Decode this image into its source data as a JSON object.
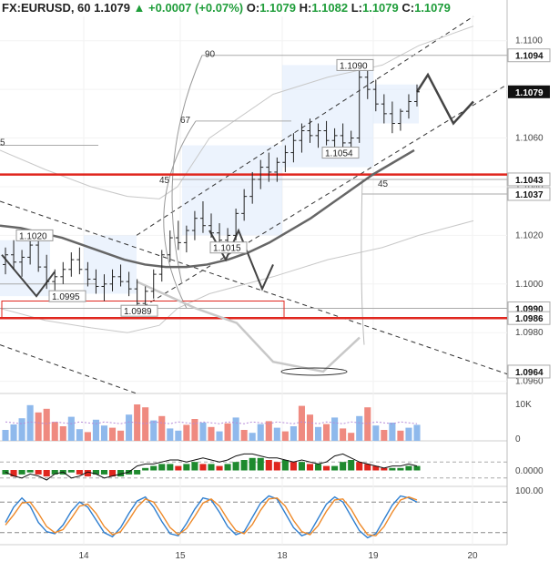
{
  "header": {
    "symbol": "FX:EURUSD, 60",
    "last": "1.1079",
    "change": "+0.0007 (+0.07%)",
    "o_label": "O:",
    "o": "1.1079",
    "h_label": "H:",
    "h": "1.1082",
    "l_label": "L:",
    "l": "1.1079",
    "c_label": "C:",
    "c": "1.1079"
  },
  "chart_data": [
    {
      "type": "line",
      "panel": "price",
      "y_axis_ticks": [
        "1.1100",
        "1.1080",
        "1.1060",
        "1.1040",
        "1.1020",
        "1.1000",
        "1.0980",
        "1.0960"
      ],
      "ylim": [
        1.0955,
        1.111
      ],
      "x_ticks": [
        "14",
        "15",
        "18",
        "19",
        "20"
      ],
      "price_labels": [
        {
          "text": "1.1094",
          "value": 1.1094,
          "style": "white"
        },
        {
          "text": "1.1079",
          "value": 1.1079,
          "style": "black"
        },
        {
          "text": "1.1043",
          "value": 1.1043,
          "style": "white"
        },
        {
          "text": "1.1037",
          "value": 1.1037,
          "style": "white"
        },
        {
          "text": "1.0990",
          "value": 1.099,
          "style": "white"
        },
        {
          "text": "1.0986",
          "value": 1.0986,
          "style": "white"
        },
        {
          "text": "1.0964",
          "value": 1.0964,
          "style": "white"
        }
      ],
      "annotations": [
        {
          "text": "1.1090",
          "value": 1.109
        },
        {
          "text": "1.1054",
          "value": 1.1054
        },
        {
          "text": "1.1020",
          "value": 1.102
        },
        {
          "text": "1.1015",
          "value": 1.1015
        },
        {
          "text": "1.0995",
          "value": 1.0995
        },
        {
          "text": "1.0989",
          "value": 1.0989
        },
        {
          "text": "90"
        },
        {
          "text": "67"
        },
        {
          "text": "45"
        },
        {
          "text": "45"
        },
        {
          "text": "5"
        }
      ],
      "horizontal_levels": [
        1.1045,
        1.0986
      ],
      "candles": [
        [
          1.1008,
          1.1015,
          1.1004,
          1.1012
        ],
        [
          1.1012,
          1.1018,
          1.1006,
          1.1009
        ],
        [
          1.1009,
          1.1014,
          1.1003,
          1.1011
        ],
        [
          1.1011,
          1.102,
          1.1008,
          1.1016
        ],
        [
          1.1016,
          1.1019,
          1.1005,
          1.1007
        ],
        [
          1.1007,
          1.1012,
          1.0998,
          1.1001
        ],
        [
          1.1001,
          1.1006,
          1.0995,
          1.1003
        ],
        [
          1.1003,
          1.1009,
          1.1,
          1.1006
        ],
        [
          1.1006,
          1.1013,
          1.1003,
          1.101
        ],
        [
          1.101,
          1.1015,
          1.1004,
          1.1006
        ],
        [
          1.1006,
          1.1009,
          1.0999,
          1.1002
        ],
        [
          1.1002,
          1.1006,
          1.0996,
          1.0999
        ],
        [
          1.0999,
          1.1004,
          1.0993,
          1.1
        ],
        [
          1.1,
          1.1006,
          1.0997,
          1.1003
        ],
        [
          1.1003,
          1.1008,
          1.0999,
          1.1001
        ],
        [
          1.1001,
          1.1005,
          1.0995,
          1.0998
        ],
        [
          1.0998,
          1.1002,
          1.0989,
          1.0992
        ],
        [
          1.0992,
          1.0999,
          1.099,
          1.0997
        ],
        [
          1.0997,
          1.1006,
          1.0994,
          1.1004
        ],
        [
          1.1004,
          1.1014,
          1.1001,
          1.1012
        ],
        [
          1.1012,
          1.1022,
          1.1009,
          1.1019
        ],
        [
          1.1019,
          1.1026,
          1.1014,
          1.1017
        ],
        [
          1.1017,
          1.1024,
          1.1013,
          1.1022
        ],
        [
          1.1022,
          1.103,
          1.1018,
          1.1027
        ],
        [
          1.1027,
          1.1034,
          1.1021,
          1.1024
        ],
        [
          1.1024,
          1.1029,
          1.1019,
          1.1021
        ],
        [
          1.1021,
          1.1025,
          1.1015,
          1.1018
        ],
        [
          1.1018,
          1.1023,
          1.1014,
          1.102
        ],
        [
          1.102,
          1.1031,
          1.1018,
          1.1029
        ],
        [
          1.1029,
          1.1039,
          1.1026,
          1.1036
        ],
        [
          1.1036,
          1.1046,
          1.1033,
          1.1043
        ],
        [
          1.1043,
          1.1051,
          1.1039,
          1.1048
        ],
        [
          1.1048,
          1.1054,
          1.1042,
          1.1046
        ],
        [
          1.1046,
          1.1052,
          1.1042,
          1.105
        ],
        [
          1.105,
          1.1057,
          1.1046,
          1.1054
        ],
        [
          1.1054,
          1.1062,
          1.105,
          1.1059
        ],
        [
          1.1059,
          1.1066,
          1.1054,
          1.1063
        ],
        [
          1.1063,
          1.1068,
          1.1058,
          1.1061
        ],
        [
          1.1061,
          1.1066,
          1.1056,
          1.1063
        ],
        [
          1.1063,
          1.1067,
          1.1057,
          1.1059
        ],
        [
          1.1059,
          1.1064,
          1.1054,
          1.1061
        ],
        [
          1.1061,
          1.1066,
          1.1056,
          1.1058
        ],
        [
          1.1058,
          1.1063,
          1.1054,
          1.106
        ],
        [
          1.106,
          1.109,
          1.1058,
          1.1085
        ],
        [
          1.1085,
          1.1089,
          1.1076,
          1.108
        ],
        [
          1.108,
          1.1084,
          1.1071,
          1.1074
        ],
        [
          1.1074,
          1.1078,
          1.1066,
          1.107
        ],
        [
          1.107,
          1.1075,
          1.1062,
          1.1066
        ],
        [
          1.1066,
          1.1072,
          1.1063,
          1.1071
        ],
        [
          1.1071,
          1.1078,
          1.1068,
          1.1075
        ],
        [
          1.1075,
          1.1082,
          1.1073,
          1.1079
        ]
      ],
      "moving_average": [
        1.1024,
        1.1023,
        1.1021,
        1.1019,
        1.1016,
        1.1013,
        1.101,
        1.1008,
        1.1007,
        1.1007,
        1.1008,
        1.101,
        1.1013,
        1.1017,
        1.1022,
        1.1027,
        1.1033,
        1.1039,
        1.1045,
        1.105,
        1.1055
      ],
      "forecast_dark": [
        [
          1.1079
        ],
        [
          1.1086
        ],
        [
          1.1076
        ],
        [
          1.1066
        ],
        [
          1.1075
        ]
      ],
      "forecast_light": [
        [
          1.1001
        ],
        [
          1.099
        ],
        [
          1.0984
        ],
        [
          1.0968
        ],
        [
          1.0964
        ],
        [
          1.0978
        ]
      ]
    },
    {
      "type": "bar",
      "panel": "volume",
      "y_axis_ticks": [
        "10K",
        "0"
      ],
      "ylim": [
        0,
        12000
      ],
      "values": [
        3000,
        4500,
        6200,
        9800,
        7800,
        8800,
        5200,
        4000,
        6600,
        3200,
        2400,
        5800,
        4200,
        3600,
        2800,
        7200,
        10000,
        9200,
        5600,
        6800,
        3400,
        2800,
        4400,
        6000,
        5000,
        3800,
        2600,
        4800,
        6400,
        3000,
        2200,
        4600,
        5400,
        3600,
        2600,
        4000,
        9600,
        7200,
        3800,
        4600,
        6400,
        3400,
        2200,
        6800,
        9200,
        4200,
        3000,
        5000,
        2800,
        3600,
        4400
      ],
      "up": [
        true,
        true,
        true,
        true,
        false,
        false,
        false,
        false,
        true,
        true,
        false,
        true,
        true,
        false,
        false,
        true,
        false,
        false,
        true,
        false,
        true,
        true,
        false,
        false,
        true,
        false,
        true,
        false,
        true,
        false,
        true,
        true,
        false,
        true,
        false,
        true,
        false,
        false,
        true,
        false,
        true,
        false,
        false,
        true,
        false,
        true,
        false,
        true,
        false,
        true,
        true
      ]
    },
    {
      "type": "bar",
      "panel": "macd",
      "y_axis_ticks": [
        "0.0000"
      ],
      "ylim": [
        -0.001,
        0.001
      ],
      "values": [
        -0.0002,
        -0.0003,
        -0.0002,
        -0.0001,
        -0.0002,
        -0.0003,
        -0.0002,
        -0.0002,
        -0.0001,
        -0.0002,
        -0.0003,
        -0.0002,
        -0.0002,
        -0.0003,
        -0.0003,
        -0.0002,
        -0.0002,
        0.0001,
        0.0002,
        0.0003,
        0.0003,
        0.0002,
        0.0003,
        0.0004,
        0.0003,
        0.0003,
        0.0002,
        0.0003,
        0.0004,
        0.0005,
        0.0006,
        0.0006,
        0.0005,
        0.0004,
        0.0005,
        0.0004,
        0.0004,
        0.0003,
        0.0003,
        0.0002,
        0.0002,
        0.0004,
        0.0005,
        0.0004,
        0.0003,
        0.0002,
        0.0001,
        0.0001,
        0.0001,
        0.0002,
        0.0002
      ],
      "signal_line": [
        -0.0001,
        -0.0003,
        -0.0004,
        -0.0002,
        -0.0003,
        -0.0005,
        -0.0002,
        -0.0001,
        -0.0004,
        -0.0003,
        -0.0001,
        -0.0002,
        -0.0004,
        -0.0003,
        -0.0002,
        -0.0001,
        0.0002,
        0.0003,
        0.0003,
        0.0004,
        0.0005,
        0.0005,
        0.0004,
        0.0005,
        0.0006,
        0.0005,
        0.0004,
        0.0005,
        0.0007,
        0.0008,
        0.0008,
        0.0007,
        0.0006,
        0.0006,
        0.0005,
        0.0004,
        0.0005,
        0.0004,
        0.0003,
        0.0004,
        0.0007,
        0.0008,
        0.0006,
        0.0004,
        0.0003,
        0.0002,
        0.0001,
        0.0002,
        0.0002,
        0.0003,
        0.0002
      ]
    },
    {
      "type": "line",
      "panel": "stochastic",
      "y_axis_ticks": [
        "100.00"
      ],
      "ylim": [
        0,
        100
      ],
      "series": [
        {
          "color": "#2f7fd0",
          "values": [
            40,
            70,
            88,
            72,
            40,
            22,
            18,
            35,
            62,
            80,
            70,
            45,
            20,
            12,
            30,
            58,
            82,
            90,
            70,
            42,
            18,
            14,
            38,
            66,
            88,
            84,
            60,
            32,
            16,
            22,
            50,
            78,
            92,
            86,
            58,
            30,
            14,
            20,
            48,
            76,
            90,
            80,
            52,
            24,
            10,
            18,
            46,
            74,
            92,
            88,
            80
          ]
        },
        {
          "color": "#ee8a2a",
          "values": [
            35,
            55,
            78,
            80,
            58,
            32,
            20,
            26,
            48,
            72,
            76,
            58,
            32,
            16,
            22,
            45,
            70,
            86,
            80,
            56,
            30,
            16,
            28,
            52,
            78,
            86,
            72,
            46,
            24,
            18,
            36,
            64,
            86,
            88,
            72,
            44,
            22,
            16,
            34,
            62,
            84,
            86,
            66,
            38,
            16,
            14,
            32,
            60,
            84,
            90,
            84
          ]
        }
      ]
    }
  ]
}
